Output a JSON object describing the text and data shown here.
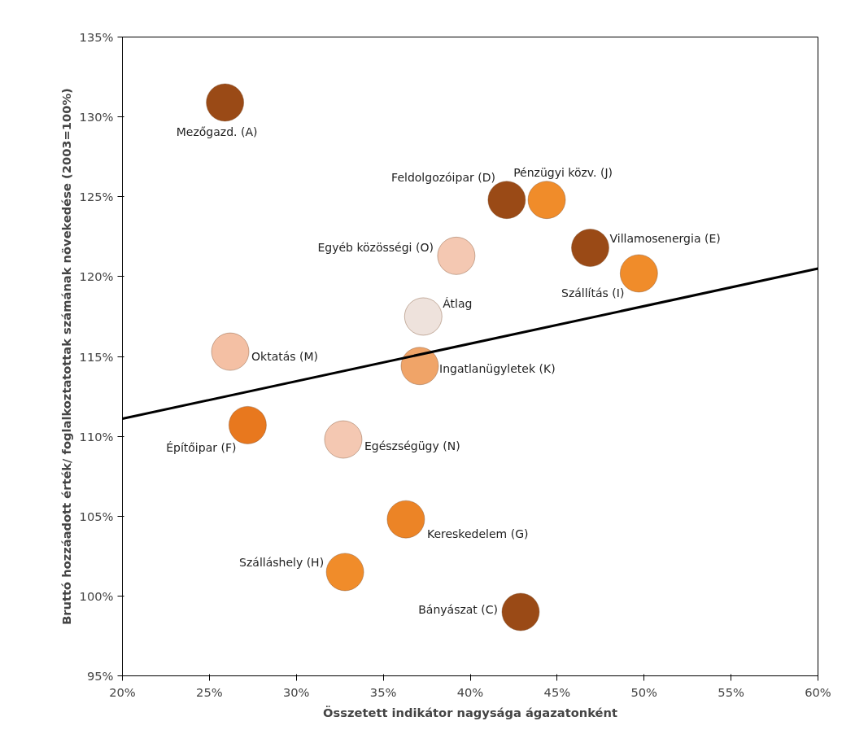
{
  "chart_data": {
    "type": "scatter",
    "xlabel": "Összetett indikátor nagysága ágazatonként",
    "ylabel": "Bruttó hozzáadott érték/ foglalkoztatottak számának növekedése (2003=100%)",
    "grid": false,
    "xlim": [
      20,
      60
    ],
    "ylim": [
      95,
      135
    ],
    "xticks": [
      {
        "value": 20,
        "label": "20%"
      },
      {
        "value": 25,
        "label": "25%"
      },
      {
        "value": 30,
        "label": "30%"
      },
      {
        "value": 35,
        "label": "35%"
      },
      {
        "value": 40,
        "label": "40%"
      },
      {
        "value": 45,
        "label": "45%"
      },
      {
        "value": 50,
        "label": "50%"
      },
      {
        "value": 55,
        "label": "55%"
      },
      {
        "value": 60,
        "label": "60%"
      }
    ],
    "yticks": [
      {
        "value": 95,
        "label": "95%"
      },
      {
        "value": 100,
        "label": "100%"
      },
      {
        "value": 105,
        "label": "105%"
      },
      {
        "value": 110,
        "label": "110%"
      },
      {
        "value": 115,
        "label": "115%"
      },
      {
        "value": 120,
        "label": "120%"
      },
      {
        "value": 125,
        "label": "125%"
      },
      {
        "value": 130,
        "label": "130%"
      },
      {
        "value": 135,
        "label": "135%"
      }
    ],
    "series": [
      {
        "marker": "circle",
        "x": [
          25.9,
          42.1,
          44.4,
          46.9,
          49.7,
          39.2,
          37.3,
          26.2,
          37.1,
          27.2,
          32.7,
          36.3,
          32.8,
          42.9
        ],
        "values": [
          130.9,
          124.8,
          124.8,
          121.8,
          120.2,
          121.3,
          117.5,
          115.3,
          114.4,
          110.7,
          109.8,
          104.8,
          101.5,
          99.0
        ],
        "colors": [
          "#9a4a16",
          "#9a4a16",
          "#f08c2a",
          "#9a4a16",
          "#f08c2a",
          "#f4c8b2",
          "#eee2dc",
          "#f4c0a4",
          "#f0a468",
          "#e8781e",
          "#f4c8b2",
          "#ec8426",
          "#f08c2a",
          "#9a4a16"
        ]
      },
      {
        "type": "line",
        "marker": "none",
        "color": "#000000",
        "x": [
          20,
          60
        ],
        "values": [
          111.1,
          120.5
        ]
      }
    ],
    "annotations": [
      {
        "text": "Mezőgazd. (A)",
        "x": 25.9,
        "y": 130.9
      },
      {
        "text": "Feldolgozóipar (D)",
        "x": 42.1,
        "y": 124.8
      },
      {
        "text": "Pénzügyi közv. (J)",
        "x": 44.4,
        "y": 124.8
      },
      {
        "text": "Villamosenergia (E)",
        "x": 46.9,
        "y": 121.8
      },
      {
        "text": "Szállítás (I)",
        "x": 49.7,
        "y": 120.2
      },
      {
        "text": "Egyéb közösségi (O)",
        "x": 39.2,
        "y": 121.3
      },
      {
        "text": "Átlag",
        "x": 37.3,
        "y": 117.5
      },
      {
        "text": "Oktatás (M)",
        "x": 26.2,
        "y": 115.3
      },
      {
        "text": "Ingatlanügyletek (K)",
        "x": 37.1,
        "y": 114.4
      },
      {
        "text": "Építőipar (F)",
        "x": 27.2,
        "y": 110.7
      },
      {
        "text": "Egészségügy (N)",
        "x": 32.7,
        "y": 109.8
      },
      {
        "text": "Kereskedelem (G)",
        "x": 36.3,
        "y": 104.8
      },
      {
        "text": "Szálláshely (H)",
        "x": 32.8,
        "y": 101.5
      },
      {
        "text": "Bányászat (C)",
        "x": 42.9,
        "y": 99.0
      }
    ]
  }
}
